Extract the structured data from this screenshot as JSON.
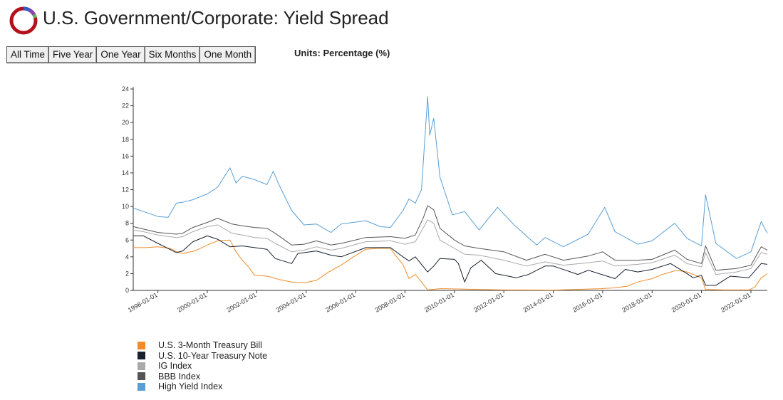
{
  "header": {
    "title": "U.S. Government/Corporate: Yield Spread",
    "logo_icon": "ring-logo-icon"
  },
  "range_buttons": [
    "All Time",
    "Five Year",
    "One Year",
    "Six Months",
    "One Month"
  ],
  "units_label": "Units: Percentage (%)",
  "colors": {
    "tbill": "#f28c28",
    "t10": "#16202e",
    "ig": "#a9a9a9",
    "bbb": "#555555",
    "hy": "#5a9fd4",
    "logo_ring": "#b3121b",
    "logo_accent_blue": "#3a59c7",
    "logo_accent_purple": "#8e44ad",
    "logo_accent_green": "#5cb85c"
  },
  "chart_data": {
    "type": "line",
    "title": "",
    "xlabel": "",
    "ylabel": "",
    "xlim": [
      "1997-01-01",
      "2022-08-31"
    ],
    "ylim": [
      0,
      24
    ],
    "y_ticks": [
      0,
      2,
      4,
      6,
      8,
      10,
      12,
      14,
      16,
      18,
      20,
      22,
      24
    ],
    "x_ticks": [
      "1998-01-01",
      "2000-01-01",
      "2002-01-01",
      "2004-01-01",
      "2006-01-01",
      "2008-01-01",
      "2010-01-01",
      "2012-01-01",
      "2014-01-01",
      "2016-01-01",
      "2018-01-01",
      "2020-01-01",
      "2022-01-01"
    ],
    "grid": false,
    "legend_position": "bottom-left",
    "series": [
      {
        "name": "U.S. 3-Month Treasury Bill",
        "color_key": "tbill",
        "points": [
          [
            "1997-01-01",
            5.1
          ],
          [
            "1997-07-01",
            5.1
          ],
          [
            "1998-01-01",
            5.2
          ],
          [
            "1998-07-01",
            5.0
          ],
          [
            "1998-11-01",
            4.5
          ],
          [
            "1999-01-01",
            4.4
          ],
          [
            "1999-07-01",
            4.7
          ],
          [
            "2000-01-01",
            5.4
          ],
          [
            "2000-06-01",
            5.9
          ],
          [
            "2000-12-01",
            6.0
          ],
          [
            "2001-03-01",
            4.6
          ],
          [
            "2001-06-01",
            3.6
          ],
          [
            "2001-09-01",
            2.8
          ],
          [
            "2001-12-01",
            1.8
          ],
          [
            "2002-06-01",
            1.7
          ],
          [
            "2002-12-01",
            1.3
          ],
          [
            "2003-06-01",
            1.0
          ],
          [
            "2003-12-01",
            0.9
          ],
          [
            "2004-06-01",
            1.2
          ],
          [
            "2004-12-01",
            2.2
          ],
          [
            "2005-06-01",
            3.0
          ],
          [
            "2005-12-01",
            4.0
          ],
          [
            "2006-06-01",
            4.9
          ],
          [
            "2006-12-01",
            5.0
          ],
          [
            "2007-06-01",
            5.0
          ],
          [
            "2007-08-01",
            4.3
          ],
          [
            "2007-12-01",
            3.1
          ],
          [
            "2008-03-01",
            1.4
          ],
          [
            "2008-06-01",
            1.9
          ],
          [
            "2008-09-01",
            1.0
          ],
          [
            "2008-12-01",
            0.05
          ],
          [
            "2009-06-01",
            0.2
          ],
          [
            "2010-06-01",
            0.15
          ],
          [
            "2012-01-01",
            0.05
          ],
          [
            "2014-01-01",
            0.03
          ],
          [
            "2015-12-01",
            0.2
          ],
          [
            "2016-06-01",
            0.3
          ],
          [
            "2017-01-01",
            0.5
          ],
          [
            "2017-06-01",
            1.0
          ],
          [
            "2018-01-01",
            1.4
          ],
          [
            "2018-06-01",
            1.9
          ],
          [
            "2019-01-01",
            2.4
          ],
          [
            "2019-06-01",
            2.2
          ],
          [
            "2019-09-01",
            1.9
          ],
          [
            "2020-01-01",
            1.5
          ],
          [
            "2020-03-01",
            0.1
          ],
          [
            "2021-01-01",
            0.05
          ],
          [
            "2021-12-01",
            0.05
          ],
          [
            "2022-03-01",
            0.4
          ],
          [
            "2022-06-01",
            1.5
          ],
          [
            "2022-08-31",
            2.0
          ]
        ]
      },
      {
        "name": "U.S. 10-Year Treasury Note",
        "color_key": "t10",
        "points": [
          [
            "1997-01-01",
            6.5
          ],
          [
            "1997-06-01",
            6.5
          ],
          [
            "1998-01-01",
            5.6
          ],
          [
            "1998-10-01",
            4.5
          ],
          [
            "1999-01-01",
            4.7
          ],
          [
            "1999-06-01",
            5.8
          ],
          [
            "2000-01-01",
            6.5
          ],
          [
            "2000-06-01",
            6.1
          ],
          [
            "2000-12-01",
            5.2
          ],
          [
            "2001-06-01",
            5.3
          ],
          [
            "2001-12-01",
            5.1
          ],
          [
            "2002-06-01",
            4.9
          ],
          [
            "2002-10-01",
            3.8
          ],
          [
            "2003-06-01",
            3.2
          ],
          [
            "2003-09-01",
            4.4
          ],
          [
            "2004-06-01",
            4.7
          ],
          [
            "2005-01-01",
            4.2
          ],
          [
            "2005-06-01",
            4.0
          ],
          [
            "2006-06-01",
            5.1
          ],
          [
            "2007-06-01",
            5.1
          ],
          [
            "2007-12-01",
            4.0
          ],
          [
            "2008-03-01",
            3.5
          ],
          [
            "2008-06-01",
            4.0
          ],
          [
            "2008-12-01",
            2.2
          ],
          [
            "2009-03-01",
            2.9
          ],
          [
            "2009-06-01",
            3.8
          ],
          [
            "2010-01-01",
            3.7
          ],
          [
            "2010-03-01",
            3.2
          ],
          [
            "2010-06-01",
            1.0
          ],
          [
            "2010-09-01",
            2.7
          ],
          [
            "2011-02-01",
            3.6
          ],
          [
            "2011-09-01",
            2.0
          ],
          [
            "2012-07-01",
            1.5
          ],
          [
            "2013-01-01",
            1.9
          ],
          [
            "2013-09-01",
            2.9
          ],
          [
            "2014-01-01",
            2.9
          ],
          [
            "2015-01-01",
            1.9
          ],
          [
            "2015-06-01",
            2.4
          ],
          [
            "2016-07-01",
            1.4
          ],
          [
            "2016-12-01",
            2.5
          ],
          [
            "2017-06-01",
            2.2
          ],
          [
            "2018-01-01",
            2.5
          ],
          [
            "2018-10-01",
            3.2
          ],
          [
            "2019-06-01",
            2.0
          ],
          [
            "2019-09-01",
            1.5
          ],
          [
            "2020-01-01",
            1.8
          ],
          [
            "2020-03-01",
            0.6
          ],
          [
            "2020-08-01",
            0.6
          ],
          [
            "2021-03-01",
            1.7
          ],
          [
            "2021-12-01",
            1.5
          ],
          [
            "2022-06-01",
            3.2
          ],
          [
            "2022-08-31",
            3.1
          ]
        ]
      },
      {
        "name": "IG Index",
        "color_key": "ig",
        "points": [
          [
            "1997-01-01",
            7.2
          ],
          [
            "1997-06-01",
            7.0
          ],
          [
            "1998-01-01",
            6.6
          ],
          [
            "1998-10-01",
            6.3
          ],
          [
            "1999-01-01",
            6.4
          ],
          [
            "1999-06-01",
            7.0
          ],
          [
            "2000-01-01",
            7.6
          ],
          [
            "2000-06-01",
            7.8
          ],
          [
            "2001-01-01",
            6.8
          ],
          [
            "2001-06-01",
            6.6
          ],
          [
            "2001-12-01",
            6.3
          ],
          [
            "2002-06-01",
            6.2
          ],
          [
            "2002-10-01",
            5.6
          ],
          [
            "2003-06-01",
            4.6
          ],
          [
            "2003-12-01",
            4.8
          ],
          [
            "2004-06-01",
            5.2
          ],
          [
            "2005-01-01",
            4.8
          ],
          [
            "2005-06-01",
            5.0
          ],
          [
            "2006-06-01",
            5.8
          ],
          [
            "2007-06-01",
            5.9
          ],
          [
            "2008-01-01",
            5.5
          ],
          [
            "2008-06-01",
            5.8
          ],
          [
            "2008-10-01",
            7.5
          ],
          [
            "2008-12-01",
            8.4
          ],
          [
            "2009-03-01",
            8.0
          ],
          [
            "2009-06-01",
            6.0
          ],
          [
            "2010-01-01",
            5.0
          ],
          [
            "2010-06-01",
            4.3
          ],
          [
            "2011-01-01",
            4.2
          ],
          [
            "2012-01-01",
            3.6
          ],
          [
            "2012-12-01",
            2.9
          ],
          [
            "2013-09-01",
            3.4
          ],
          [
            "2014-06-01",
            3.0
          ],
          [
            "2015-06-01",
            3.3
          ],
          [
            "2016-01-01",
            3.5
          ],
          [
            "2016-07-01",
            2.9
          ],
          [
            "2017-06-01",
            3.1
          ],
          [
            "2018-01-01",
            3.3
          ],
          [
            "2018-12-01",
            4.2
          ],
          [
            "2019-06-01",
            3.2
          ],
          [
            "2020-01-01",
            2.8
          ],
          [
            "2020-03-01",
            4.5
          ],
          [
            "2020-08-01",
            1.9
          ],
          [
            "2021-06-01",
            2.2
          ],
          [
            "2022-01-01",
            2.6
          ],
          [
            "2022-06-01",
            4.5
          ],
          [
            "2022-08-31",
            4.3
          ]
        ]
      },
      {
        "name": "BBB Index",
        "color_key": "bbb",
        "points": [
          [
            "1997-01-01",
            7.6
          ],
          [
            "1997-06-01",
            7.3
          ],
          [
            "1998-01-01",
            6.9
          ],
          [
            "1998-10-01",
            6.7
          ],
          [
            "1999-01-01",
            6.8
          ],
          [
            "1999-06-01",
            7.5
          ],
          [
            "2000-01-01",
            8.1
          ],
          [
            "2000-06-01",
            8.6
          ],
          [
            "2001-01-01",
            7.9
          ],
          [
            "2001-06-01",
            7.7
          ],
          [
            "2001-12-01",
            7.5
          ],
          [
            "2002-06-01",
            7.4
          ],
          [
            "2002-10-01",
            6.8
          ],
          [
            "2003-06-01",
            5.4
          ],
          [
            "2003-12-01",
            5.5
          ],
          [
            "2004-06-01",
            5.9
          ],
          [
            "2005-01-01",
            5.4
          ],
          [
            "2005-06-01",
            5.6
          ],
          [
            "2006-06-01",
            6.3
          ],
          [
            "2007-06-01",
            6.4
          ],
          [
            "2008-01-01",
            6.2
          ],
          [
            "2008-06-01",
            6.6
          ],
          [
            "2008-10-01",
            8.7
          ],
          [
            "2008-12-01",
            10.1
          ],
          [
            "2009-03-01",
            9.6
          ],
          [
            "2009-06-01",
            7.4
          ],
          [
            "2010-01-01",
            6.0
          ],
          [
            "2010-06-01",
            5.3
          ],
          [
            "2011-01-01",
            5.0
          ],
          [
            "2012-01-01",
            4.6
          ],
          [
            "2012-12-01",
            3.6
          ],
          [
            "2013-09-01",
            4.3
          ],
          [
            "2014-06-01",
            3.6
          ],
          [
            "2015-06-01",
            4.1
          ],
          [
            "2016-01-01",
            4.6
          ],
          [
            "2016-07-01",
            3.6
          ],
          [
            "2017-06-01",
            3.6
          ],
          [
            "2018-01-01",
            3.7
          ],
          [
            "2018-12-01",
            4.8
          ],
          [
            "2019-06-01",
            3.7
          ],
          [
            "2020-01-01",
            3.2
          ],
          [
            "2020-03-01",
            5.3
          ],
          [
            "2020-08-01",
            2.4
          ],
          [
            "2021-06-01",
            2.6
          ],
          [
            "2022-01-01",
            3.0
          ],
          [
            "2022-06-01",
            5.2
          ],
          [
            "2022-08-31",
            4.8
          ]
        ]
      },
      {
        "name": "High Yield Index",
        "color_key": "hy",
        "points": [
          [
            "1997-01-01",
            9.8
          ],
          [
            "1997-06-01",
            9.4
          ],
          [
            "1998-01-01",
            8.8
          ],
          [
            "1998-06-01",
            8.7
          ],
          [
            "1998-10-01",
            10.4
          ],
          [
            "1999-01-01",
            10.5
          ],
          [
            "1999-06-01",
            10.8
          ],
          [
            "2000-01-01",
            11.5
          ],
          [
            "2000-06-01",
            12.3
          ],
          [
            "2000-12-01",
            14.6
          ],
          [
            "2001-03-01",
            12.8
          ],
          [
            "2001-06-01",
            13.6
          ],
          [
            "2001-09-01",
            13.4
          ],
          [
            "2001-12-01",
            13.2
          ],
          [
            "2002-06-01",
            12.6
          ],
          [
            "2002-09-01",
            14.2
          ],
          [
            "2002-12-01",
            12.5
          ],
          [
            "2003-06-01",
            9.5
          ],
          [
            "2003-12-01",
            7.8
          ],
          [
            "2004-06-01",
            7.9
          ],
          [
            "2005-01-01",
            6.9
          ],
          [
            "2005-06-01",
            7.9
          ],
          [
            "2006-06-01",
            8.3
          ],
          [
            "2007-01-01",
            7.6
          ],
          [
            "2007-06-01",
            7.5
          ],
          [
            "2007-12-01",
            9.5
          ],
          [
            "2008-03-01",
            10.9
          ],
          [
            "2008-06-01",
            10.4
          ],
          [
            "2008-09-01",
            12.0
          ],
          [
            "2008-12-01",
            23.1
          ],
          [
            "2009-01-01",
            18.5
          ],
          [
            "2009-03-01",
            20.5
          ],
          [
            "2009-06-01",
            13.5
          ],
          [
            "2009-12-01",
            9.0
          ],
          [
            "2010-06-01",
            9.4
          ],
          [
            "2011-01-01",
            7.2
          ],
          [
            "2011-10-01",
            9.9
          ],
          [
            "2012-06-01",
            7.8
          ],
          [
            "2013-05-01",
            5.4
          ],
          [
            "2013-09-01",
            6.3
          ],
          [
            "2014-06-01",
            5.2
          ],
          [
            "2015-06-01",
            6.7
          ],
          [
            "2016-02-01",
            9.9
          ],
          [
            "2016-07-01",
            7.0
          ],
          [
            "2017-06-01",
            5.5
          ],
          [
            "2018-01-01",
            5.9
          ],
          [
            "2018-12-01",
            8.0
          ],
          [
            "2019-06-01",
            6.2
          ],
          [
            "2020-01-01",
            5.3
          ],
          [
            "2020-03-01",
            11.4
          ],
          [
            "2020-08-01",
            5.6
          ],
          [
            "2021-06-01",
            3.8
          ],
          [
            "2022-01-01",
            4.6
          ],
          [
            "2022-06-01",
            8.2
          ],
          [
            "2022-08-31",
            6.8
          ]
        ]
      }
    ]
  }
}
